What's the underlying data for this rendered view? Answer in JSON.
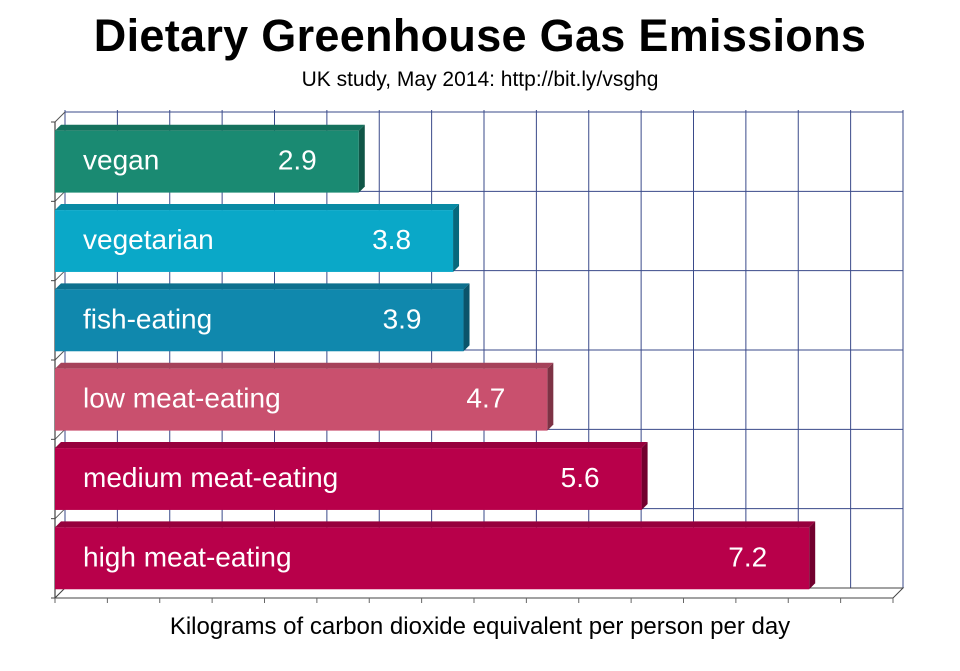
{
  "chart_data": {
    "type": "bar",
    "orientation": "horizontal",
    "title": "Dietary Greenhouse Gas Emissions",
    "subtitle": "UK study, May 2014: http://bit.ly/vsghg",
    "xlabel": "Kilograms of carbon dioxide equivalent per person per day",
    "ylabel": "",
    "xlim": [
      0,
      8
    ],
    "grid": true,
    "categories": [
      "vegan",
      "vegetarian",
      "fish-eating",
      "low meat-eating",
      "medium meat-eating",
      "high meat-eating"
    ],
    "values": [
      2.9,
      3.8,
      3.9,
      4.7,
      5.6,
      7.2
    ],
    "value_labels": [
      "2.9",
      "3.8",
      "3.9",
      "4.7",
      "5.6",
      "7.2"
    ],
    "colors": [
      "#1a8a72",
      "#0aa8c8",
      "#1088ad",
      "#c9506e",
      "#b8004a",
      "#b8004a"
    ]
  }
}
